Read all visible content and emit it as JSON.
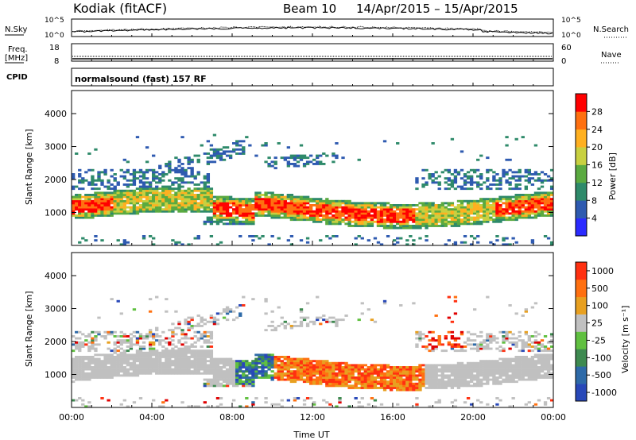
{
  "header": {
    "station": "Kodiak (fitACF)",
    "beam": "Beam 10",
    "date_range": "14/Apr/2015 – 15/Apr/2015"
  },
  "strip_labels": {
    "nsky": "N.Sky",
    "nsearch": "N.Search",
    "freq_line1": "Freq.",
    "freq_line2": "[MHz]",
    "nave": "Nave",
    "cpid": "CPID",
    "mode": "normalsound (fast) 157 RF",
    "noise_top_left": "10^5",
    "noise_bottom_left": "10^0",
    "noise_top_right": "10^5",
    "noise_bottom_right": "10^0",
    "freq_top": "18",
    "freq_bottom": "8",
    "nave_top": "60",
    "nave_bottom": "0"
  },
  "colors": {
    "power_scale": [
      "#2a2aff",
      "#2e5ab0",
      "#2e8a6a",
      "#5aaa40",
      "#c8d040",
      "#ffb020",
      "#ff7010",
      "#ff0000"
    ],
    "velocity_scale": [
      "#2848b8",
      "#2e6aa8",
      "#3e8a50",
      "#60c040",
      "#c0c0c0",
      "#e8a020",
      "#ff7010",
      "#ff3010",
      "#e00000"
    ]
  },
  "chart_data": [
    {
      "type": "heatmap",
      "name": "power",
      "ylabel": "Slant Range [km]",
      "yticks": [
        "1000",
        "2000",
        "3000",
        "4000"
      ],
      "xticks": [
        "00:00",
        "04:00",
        "08:00",
        "12:00",
        "16:00",
        "20:00",
        "00:00"
      ],
      "colorbar_label": "Power [dB]",
      "colorbar_ticks": [
        "4",
        "8",
        "12",
        "16",
        "20",
        "24",
        "28"
      ]
    },
    {
      "type": "heatmap",
      "name": "velocity",
      "ylabel": "Slant Range [km]",
      "yticks": [
        "1000",
        "2000",
        "3000",
        "4000"
      ],
      "xticks": [
        "00:00",
        "04:00",
        "08:00",
        "12:00",
        "16:00",
        "20:00",
        "00:00"
      ],
      "xlabel": "Time UT",
      "colorbar_label": "Velocity [m s⁻¹]",
      "colorbar_ticks": [
        "1000",
        "500",
        "100",
        "25",
        "-25",
        "-100",
        "-500",
        "-1000"
      ]
    }
  ]
}
